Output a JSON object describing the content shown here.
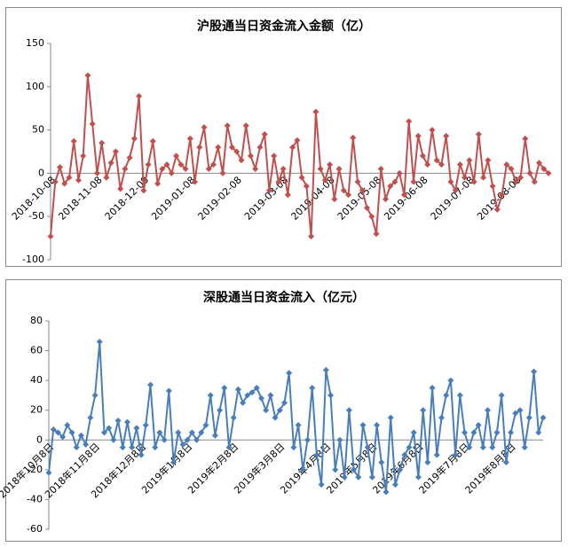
{
  "chart_data": [
    {
      "type": "line",
      "title": "沪股通当日资金流入金额（亿）",
      "categories": [
        "2018-10-08",
        null,
        null,
        null,
        null,
        null,
        null,
        null,
        null,
        null,
        "2018-11-08",
        null,
        null,
        null,
        null,
        null,
        null,
        null,
        null,
        null,
        "2018-12-08",
        null,
        null,
        null,
        null,
        null,
        null,
        null,
        null,
        null,
        "2019-01-08",
        null,
        null,
        null,
        null,
        null,
        null,
        null,
        null,
        null,
        "2019-02-08",
        null,
        null,
        null,
        null,
        null,
        null,
        null,
        null,
        null,
        "2019-03-08",
        null,
        null,
        null,
        null,
        null,
        null,
        null,
        null,
        null,
        "2019-04-08",
        null,
        null,
        null,
        null,
        null,
        null,
        null,
        null,
        null,
        "2019-05-08",
        null,
        null,
        null,
        null,
        null,
        null,
        null,
        null,
        null,
        "2019-06-08",
        null,
        null,
        null,
        null,
        null,
        null,
        null,
        null,
        null,
        "2019-07-08",
        null,
        null,
        null,
        null,
        null,
        null,
        null,
        null,
        null,
        "2019-08-08",
        null,
        null,
        null,
        null,
        null,
        null,
        null
      ],
      "series": [
        {
          "name": null,
          "color": "#c0504d",
          "values": [
            -73,
            -10,
            7,
            -12,
            -5,
            37,
            -8,
            20,
            113,
            57,
            0,
            35,
            -5,
            12,
            25,
            -18,
            5,
            18,
            40,
            89,
            -20,
            10,
            37,
            -12,
            5,
            10,
            0,
            20,
            10,
            5,
            40,
            -10,
            30,
            53,
            5,
            10,
            30,
            0,
            55,
            30,
            25,
            15,
            55,
            20,
            5,
            30,
            45,
            -20,
            20,
            -10,
            5,
            -25,
            30,
            38,
            -5,
            -15,
            -73,
            71,
            5,
            -8,
            10,
            -30,
            5,
            -20,
            -25,
            41,
            -10,
            -20,
            -40,
            -50,
            -70,
            5,
            -30,
            -15,
            -10,
            0,
            -25,
            60,
            -10,
            43,
            20,
            10,
            50,
            15,
            10,
            43,
            -10,
            -20,
            10,
            -5,
            15,
            -10,
            45,
            -5,
            15,
            -15,
            -42,
            -25,
            10,
            5,
            -10,
            -5,
            40,
            0,
            -10,
            12,
            5,
            0
          ]
        }
      ],
      "ylim": [
        -100,
        150
      ],
      "yticks": [
        -100,
        -50,
        0,
        50,
        100,
        150
      ]
    },
    {
      "type": "line",
      "title": "深股通当日资金流入（亿元）",
      "categories": [
        "2018年10月8日",
        null,
        null,
        null,
        null,
        null,
        null,
        null,
        null,
        null,
        "2018年11月8日",
        null,
        null,
        null,
        null,
        null,
        null,
        null,
        null,
        null,
        "2018年12月8日",
        null,
        null,
        null,
        null,
        null,
        null,
        null,
        null,
        null,
        "2019年1月8日",
        null,
        null,
        null,
        null,
        null,
        null,
        null,
        null,
        null,
        "2019年2月8日",
        null,
        null,
        null,
        null,
        null,
        null,
        null,
        null,
        null,
        "2019年3月8日",
        null,
        null,
        null,
        null,
        null,
        null,
        null,
        null,
        null,
        "2019年4月8日",
        null,
        null,
        null,
        null,
        null,
        null,
        null,
        null,
        null,
        "2019年5月8日",
        null,
        null,
        null,
        null,
        null,
        null,
        null,
        null,
        null,
        "2019年6月8日",
        null,
        null,
        null,
        null,
        null,
        null,
        null,
        null,
        null,
        "2019年7月8日",
        null,
        null,
        null,
        null,
        null,
        null,
        null,
        null,
        null,
        "2019年8月8日",
        null,
        null,
        null,
        null,
        null,
        null,
        null
      ],
      "series": [
        {
          "name": null,
          "color": "#4a7ebb",
          "values": [
            -22,
            7,
            5,
            2,
            10,
            5,
            -5,
            3,
            -3,
            15,
            30,
            66,
            5,
            8,
            0,
            13,
            -5,
            12,
            -5,
            8,
            -10,
            10,
            37,
            -5,
            5,
            0,
            33,
            -15,
            5,
            -3,
            0,
            5,
            0,
            5,
            10,
            30,
            3,
            20,
            35,
            -5,
            15,
            34,
            25,
            30,
            32,
            35,
            28,
            20,
            30,
            15,
            20,
            25,
            45,
            -5,
            10,
            -20,
            0,
            35,
            -10,
            -30,
            47,
            30,
            -20,
            0,
            -25,
            20,
            -20,
            -25,
            10,
            -5,
            -25,
            10,
            -15,
            -35,
            15,
            -30,
            -20,
            -10,
            -5,
            5,
            -25,
            20,
            -15,
            35,
            -10,
            15,
            30,
            40,
            -10,
            30,
            5,
            -5,
            5,
            10,
            -5,
            20,
            -5,
            5,
            30,
            -15,
            5,
            18,
            20,
            -5,
            15,
            46,
            5,
            15
          ]
        }
      ],
      "ylim": [
        -60,
        80
      ],
      "yticks": [
        -60,
        -40,
        -20,
        0,
        20,
        40,
        60,
        80
      ]
    }
  ]
}
